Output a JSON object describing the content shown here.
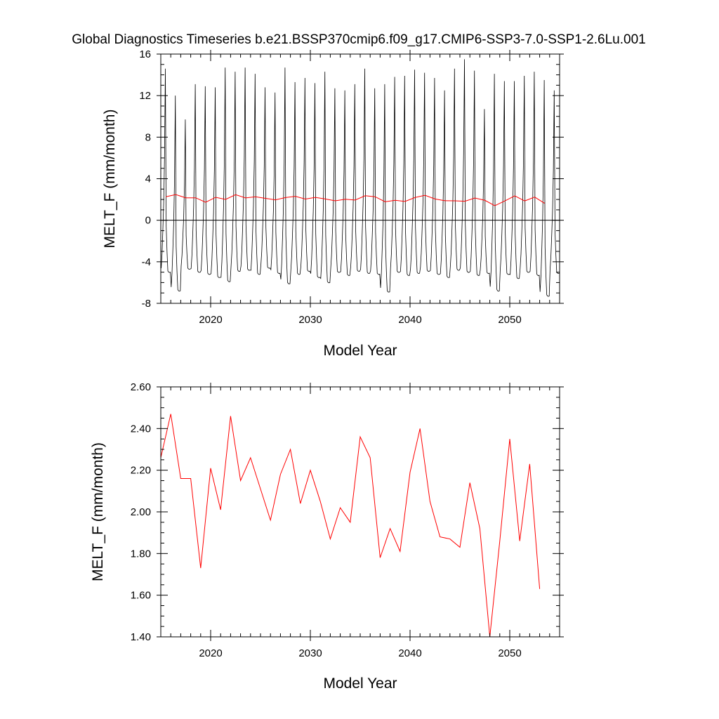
{
  "title": "Global Diagnostics Timeseries b.e21.BSSP370cmip6.f09_g17.CMIP6-SSP3-7.0-SSP1-2.6Lu.001",
  "colors": {
    "monthly_line": "#000000",
    "annual_line": "#ff0000",
    "zero_line": "#000000"
  },
  "chart_data": [
    {
      "type": "line",
      "ylabel": "MELT_F (mm/month)",
      "xlabel": "Model Year",
      "xlim": [
        2015,
        2055
      ],
      "ylim": [
        -8,
        16
      ],
      "x_ticks": [
        2020,
        2030,
        2040,
        2050
      ],
      "x_tick_labels": [
        "2020",
        "2030",
        "2040",
        "2050"
      ],
      "y_ticks": [
        -8,
        -4,
        0,
        4,
        8,
        12,
        16
      ],
      "y_tick_labels": [
        "-8",
        "-4",
        "0",
        "4",
        "8",
        "12",
        "16"
      ],
      "reference_line_y": 0,
      "monthly_profile": [
        -4.7,
        -3.6,
        -1.8,
        0.2,
        3.6,
        10.3,
        1.0,
        -1.2,
        -4.1,
        -5.0,
        -5.2,
        -5.0
      ],
      "series": [
        {
          "color": "#000000",
          "style": "monthly seasonal cycle",
          "annual_peaks": [
            14.6,
            12.0,
            9.7,
            13.1,
            12.9,
            12.8,
            14.7,
            14.3,
            14.7,
            14.1,
            12.8,
            12.3,
            14.7,
            13.3,
            13.7,
            13.2,
            14.3,
            12.7,
            12.5,
            13.1,
            14.6,
            12.7,
            13.1,
            13.8,
            13.9,
            14.5,
            14.2,
            13.7,
            12.5,
            14.6,
            15.5,
            14.4,
            10.7,
            14.1,
            13.4,
            13.4,
            13.9,
            14.3,
            13.5,
            12.5
          ],
          "annual_minima": [
            -5.0,
            -6.8,
            -4.7,
            -5.0,
            -5.2,
            -5.5,
            -5.9,
            -4.9,
            -4.8,
            -5.2,
            -4.6,
            -5.1,
            -6.1,
            -5.2,
            -4.9,
            -5.5,
            -6.0,
            -5.0,
            -5.3,
            -4.9,
            -5.1,
            -5.2,
            -6.9,
            -5.0,
            -5.3,
            -5.1,
            -4.9,
            -5.2,
            -5.5,
            -4.8,
            -5.0,
            -5.3,
            -5.1,
            -6.8,
            -5.2,
            -5.6,
            -5.0,
            -5.3,
            -7.3,
            -5.1
          ]
        },
        {
          "color": "#ff0000",
          "style": "annual mean",
          "x": [
            2015.5,
            2016.5,
            2017.5,
            2018.5,
            2019.5,
            2020.5,
            2021.5,
            2022.5,
            2023.5,
            2024.5,
            2025.5,
            2026.5,
            2027.5,
            2028.5,
            2029.5,
            2030.5,
            2031.5,
            2032.5,
            2033.5,
            2034.5,
            2035.5,
            2036.5,
            2037.5,
            2038.5,
            2039.5,
            2040.5,
            2041.5,
            2042.5,
            2043.5,
            2044.5,
            2045.5,
            2046.5,
            2047.5,
            2048.5,
            2049.5,
            2050.5,
            2051.5,
            2052.5,
            2053.5
          ],
          "values": [
            2.26,
            2.47,
            2.16,
            2.16,
            1.73,
            2.21,
            2.01,
            2.46,
            2.15,
            2.26,
            2.11,
            1.96,
            2.18,
            2.3,
            2.04,
            2.2,
            2.05,
            1.87,
            2.02,
            1.95,
            2.36,
            2.26,
            1.78,
            1.92,
            1.81,
            2.19,
            2.4,
            2.05,
            1.88,
            1.87,
            1.83,
            2.14,
            1.92,
            1.4,
            1.86,
            2.35,
            1.86,
            2.23,
            1.63
          ]
        }
      ]
    },
    {
      "type": "line",
      "ylabel": "MELT_F (mm/month)",
      "xlabel": "Model Year",
      "xlim": [
        2015,
        2055
      ],
      "ylim": [
        1.4,
        2.6
      ],
      "x_ticks": [
        2020,
        2030,
        2040,
        2050
      ],
      "x_tick_labels": [
        "2020",
        "2030",
        "2040",
        "2050"
      ],
      "y_ticks": [
        1.4,
        1.6,
        1.8,
        2.0,
        2.2,
        2.4,
        2.6
      ],
      "y_tick_labels": [
        "1.40",
        "1.60",
        "1.80",
        "2.00",
        "2.20",
        "2.40",
        "2.60"
      ],
      "series": [
        {
          "color": "#ff0000",
          "style": "annual mean",
          "x": [
            2015.0,
            2016.0,
            2017.0,
            2018.0,
            2019.0,
            2020.0,
            2021.0,
            2022.0,
            2023.0,
            2024.0,
            2025.0,
            2026.0,
            2027.0,
            2028.0,
            2029.0,
            2030.0,
            2031.0,
            2032.0,
            2033.0,
            2034.0,
            2035.0,
            2036.0,
            2037.0,
            2038.0,
            2039.0,
            2040.0,
            2041.0,
            2042.0,
            2043.0,
            2044.0,
            2045.0,
            2046.0,
            2047.0,
            2048.0,
            2049.0,
            2050.0,
            2051.0,
            2052.0,
            2053.0
          ],
          "values": [
            2.26,
            2.47,
            2.16,
            2.16,
            1.73,
            2.21,
            2.01,
            2.46,
            2.15,
            2.26,
            2.11,
            1.96,
            2.18,
            2.3,
            2.04,
            2.2,
            2.05,
            1.87,
            2.02,
            1.95,
            2.36,
            2.26,
            1.78,
            1.92,
            1.81,
            2.19,
            2.4,
            2.05,
            1.88,
            1.87,
            1.83,
            2.14,
            1.92,
            1.4,
            1.86,
            2.35,
            1.86,
            2.23,
            1.63
          ]
        }
      ]
    }
  ]
}
